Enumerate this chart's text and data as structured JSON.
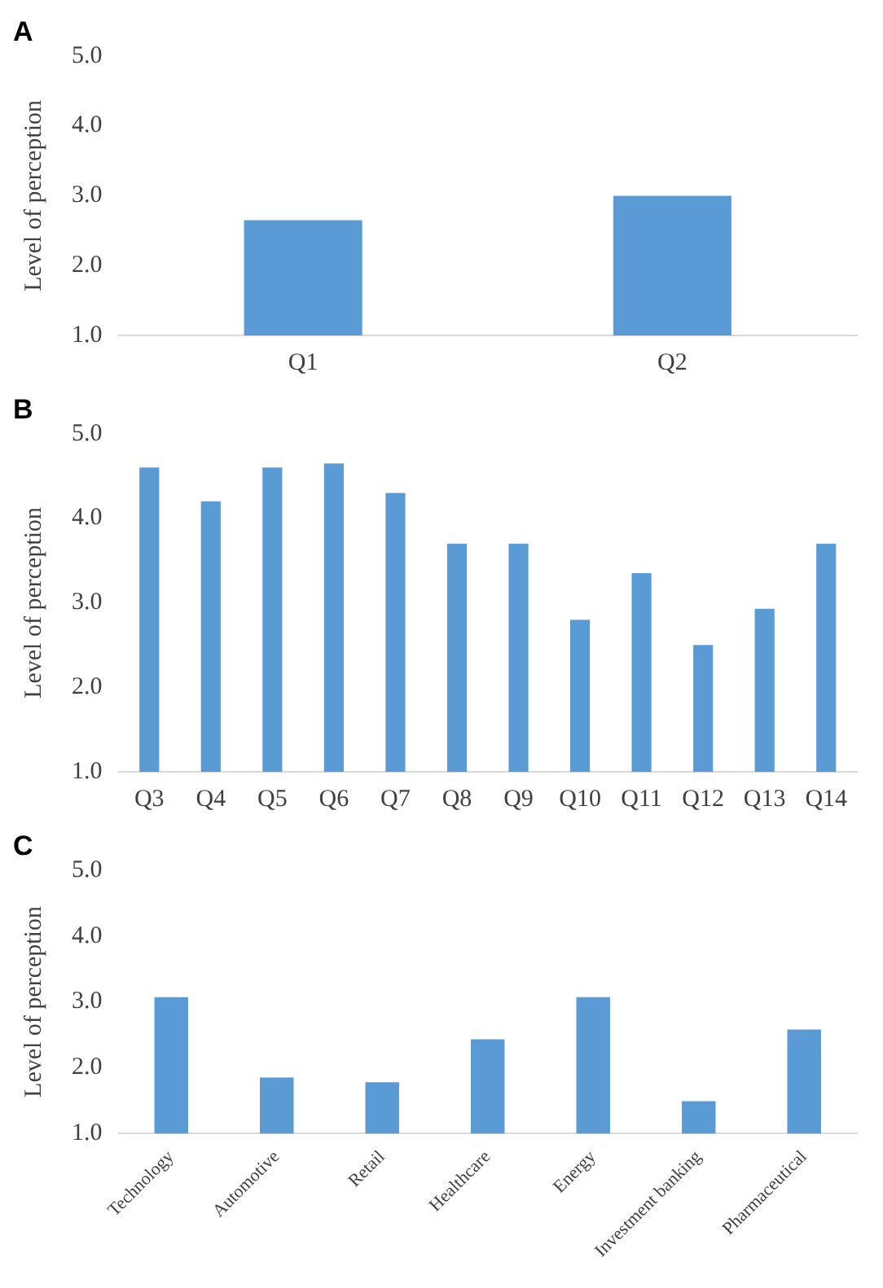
{
  "chart_data": [
    {
      "type": "bar",
      "title": "A",
      "ylabel": "Level of perception",
      "categories": [
        "Q1",
        "Q2"
      ],
      "values": [
        2.65,
        3.0
      ],
      "color": "#5b9bd5",
      "ylim": [
        1,
        5
      ],
      "yticks": [
        {
          "value": 1,
          "label": "1.0"
        },
        {
          "value": 2,
          "label": "2.0"
        },
        {
          "value": 3,
          "label": "3.0"
        },
        {
          "value": 4,
          "label": "4.0"
        },
        {
          "value": 5,
          "label": "5.0"
        }
      ]
    },
    {
      "type": "bar",
      "title": "B",
      "ylabel": "Level of perception",
      "categories": [
        "Q3",
        "Q4",
        "Q5",
        "Q6",
        "Q7",
        "Q8",
        "Q9",
        "Q10",
        "Q11",
        "Q12",
        "Q13",
        "Q14"
      ],
      "values": [
        4.6,
        4.2,
        4.6,
        4.65,
        4.3,
        3.7,
        3.7,
        2.8,
        3.35,
        2.5,
        2.93,
        3.7
      ],
      "color": "#5b9bd5",
      "ylim": [
        1,
        5
      ],
      "yticks": [
        {
          "value": 1,
          "label": "1.0"
        },
        {
          "value": 2,
          "label": "2.0"
        },
        {
          "value": 3,
          "label": "3.0"
        },
        {
          "value": 4,
          "label": "4.0"
        },
        {
          "value": 5,
          "label": "5.0"
        }
      ]
    },
    {
      "type": "bar",
      "title": "C",
      "ylabel": "Level of perception",
      "categories": [
        "Technology",
        "Automotive",
        "Retail",
        "Healthcare",
        "Energy",
        "Investment banking",
        "Pharmaceutical"
      ],
      "values": [
        3.07,
        1.85,
        1.78,
        2.43,
        3.07,
        1.49,
        2.58
      ],
      "color": "#5b9bd5",
      "ylim": [
        1,
        5
      ],
      "yticks": [
        {
          "value": 1,
          "label": "1.0"
        },
        {
          "value": 2,
          "label": "2.0"
        },
        {
          "value": 3,
          "label": "3.0"
        },
        {
          "value": 4,
          "label": "4.0"
        },
        {
          "value": 5,
          "label": "5.0"
        }
      ]
    }
  ]
}
